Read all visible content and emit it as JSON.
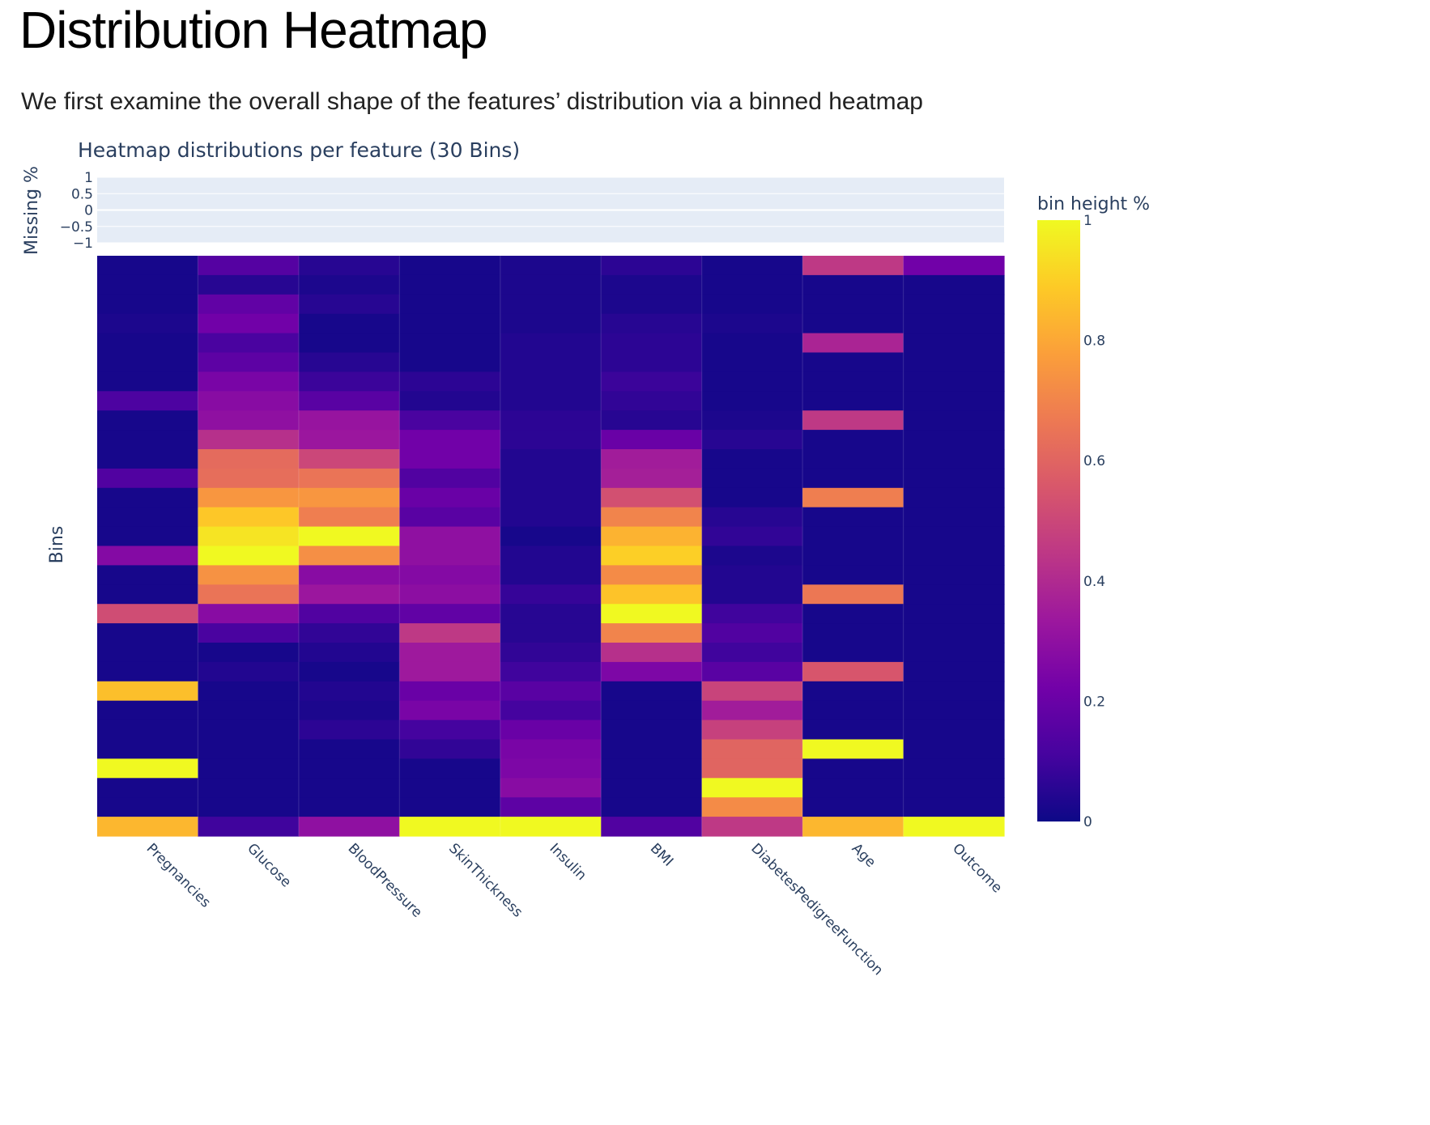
{
  "page": {
    "title": "Distribution Heatmap",
    "subtitle": "We first examine the overall shape of the features’ distribution via a binned heatmap"
  },
  "colors": {
    "plot_background": "#e5ecf6",
    "text": "#2a3f5f",
    "colorscale_plasma": [
      "#0d0887",
      "#46039f",
      "#7201a8",
      "#9c179e",
      "#bd3786",
      "#d8576b",
      "#ed7953",
      "#fb9f3a",
      "#fdca26",
      "#f0f921"
    ]
  },
  "chart_data": {
    "type": "heatmap",
    "title": "Heatmap distributions per feature (30 Bins)",
    "ylabel": "Bins",
    "missing_panel": {
      "ylabel": "Missing %",
      "yticks": [
        "1",
        "0.5",
        "0",
        "−0.5",
        "−1"
      ],
      "ylim": [
        -1,
        1
      ],
      "values": [
        0,
        0,
        0,
        0,
        0,
        0,
        0,
        0,
        0
      ]
    },
    "colorbar": {
      "title": "bin height %",
      "range": [
        0,
        1
      ],
      "ticks": [
        "0",
        "0.2",
        "0.4",
        "0.6",
        "0.8",
        "1"
      ]
    },
    "features": [
      "Pregnancies",
      "Glucose",
      "BloodPressure",
      "SkinThickness",
      "Insulin",
      "BMI",
      "DiabetesPedigreeFunction",
      "Age",
      "Outcome"
    ],
    "bins_top_to_bottom": 29,
    "values": [
      [
        0.02,
        0.15,
        0.05,
        0.02,
        0.03,
        0.06,
        0.02,
        0.45,
        0.22
      ],
      [
        0.02,
        0.05,
        0.03,
        0.02,
        0.03,
        0.03,
        0.02,
        0.02,
        0.02
      ],
      [
        0.02,
        0.18,
        0.05,
        0.02,
        0.03,
        0.03,
        0.02,
        0.02,
        0.02
      ],
      [
        0.03,
        0.22,
        0.02,
        0.02,
        0.03,
        0.05,
        0.03,
        0.02,
        0.02
      ],
      [
        0.02,
        0.12,
        0.02,
        0.02,
        0.04,
        0.06,
        0.02,
        0.38,
        0.02
      ],
      [
        0.02,
        0.17,
        0.05,
        0.02,
        0.04,
        0.06,
        0.02,
        0.02,
        0.02
      ],
      [
        0.02,
        0.24,
        0.09,
        0.06,
        0.04,
        0.09,
        0.02,
        0.02,
        0.02
      ],
      [
        0.13,
        0.28,
        0.16,
        0.04,
        0.04,
        0.07,
        0.02,
        0.02,
        0.02
      ],
      [
        0.02,
        0.3,
        0.32,
        0.12,
        0.06,
        0.05,
        0.03,
        0.45,
        0.02
      ],
      [
        0.02,
        0.42,
        0.33,
        0.22,
        0.06,
        0.2,
        0.05,
        0.02,
        0.02
      ],
      [
        0.02,
        0.62,
        0.5,
        0.22,
        0.04,
        0.35,
        0.02,
        0.02,
        0.02
      ],
      [
        0.14,
        0.63,
        0.65,
        0.14,
        0.04,
        0.36,
        0.02,
        0.02,
        0.02
      ],
      [
        0.02,
        0.75,
        0.75,
        0.2,
        0.04,
        0.53,
        0.02,
        0.68,
        0.02
      ],
      [
        0.02,
        0.88,
        0.68,
        0.16,
        0.04,
        0.7,
        0.05,
        0.02,
        0.02
      ],
      [
        0.02,
        0.95,
        1.0,
        0.3,
        0.02,
        0.83,
        0.07,
        0.02,
        0.02
      ],
      [
        0.27,
        1.0,
        0.73,
        0.3,
        0.04,
        0.9,
        0.03,
        0.02,
        0.02
      ],
      [
        0.02,
        0.74,
        0.28,
        0.27,
        0.04,
        0.72,
        0.04,
        0.02,
        0.02
      ],
      [
        0.02,
        0.65,
        0.33,
        0.29,
        0.08,
        0.87,
        0.04,
        0.66,
        0.02
      ],
      [
        0.52,
        0.28,
        0.14,
        0.18,
        0.05,
        1.0,
        0.1,
        0.02,
        0.02
      ],
      [
        0.02,
        0.12,
        0.07,
        0.45,
        0.05,
        0.7,
        0.14,
        0.02,
        0.02
      ],
      [
        0.02,
        0.02,
        0.04,
        0.34,
        0.07,
        0.42,
        0.1,
        0.02,
        0.02
      ],
      [
        0.02,
        0.04,
        0.02,
        0.34,
        0.1,
        0.25,
        0.16,
        0.55,
        0.02
      ],
      [
        0.86,
        0.02,
        0.04,
        0.2,
        0.16,
        0.02,
        0.49,
        0.02,
        0.02
      ],
      [
        0.02,
        0.02,
        0.03,
        0.24,
        0.11,
        0.02,
        0.35,
        0.02,
        0.02
      ],
      [
        0.02,
        0.02,
        0.06,
        0.11,
        0.2,
        0.02,
        0.48,
        0.02,
        0.02
      ],
      [
        0.02,
        0.02,
        0.02,
        0.07,
        0.24,
        0.02,
        0.6,
        1.0,
        0.02
      ],
      [
        1.0,
        0.02,
        0.02,
        0.02,
        0.25,
        0.02,
        0.6,
        0.02,
        0.02
      ],
      [
        0.02,
        0.02,
        0.02,
        0.02,
        0.28,
        0.02,
        1.0,
        0.02,
        0.02
      ],
      [
        0.02,
        0.02,
        0.02,
        0.02,
        0.17,
        0.02,
        0.72,
        0.02,
        0.02
      ],
      [
        0.84,
        0.1,
        0.3,
        1.0,
        1.0,
        0.14,
        0.45,
        0.84,
        1.0
      ]
    ]
  }
}
